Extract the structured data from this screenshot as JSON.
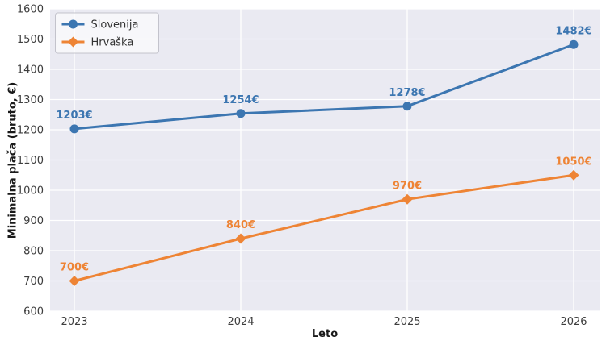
{
  "chart_data": {
    "type": "line",
    "title": "",
    "xlabel": "Leto",
    "ylabel": "Minimalna plača (bruto, €)",
    "x": [
      "2023",
      "2024",
      "2025",
      "2026"
    ],
    "ylim": [
      600,
      1600
    ],
    "yticks": [
      600,
      700,
      800,
      900,
      1000,
      1100,
      1200,
      1300,
      1400,
      1500,
      1600
    ],
    "grid": true,
    "legend_position": "upper left",
    "colors": {
      "plot_background": "#eaeaf2",
      "gridline": "#ffffff",
      "tick_text": "#3d3d3d",
      "slovenija": "#3c76b1",
      "hrvaska": "#ee8435"
    },
    "series": [
      {
        "name": "Slovenija",
        "values": [
          1203,
          1254,
          1278,
          1482
        ],
        "point_labels": [
          "1203€",
          "1254€",
          "1278€",
          "1482€"
        ],
        "color": "#3c76b1",
        "marker": "circle"
      },
      {
        "name": "Hrvaška",
        "values": [
          700,
          840,
          970,
          1050
        ],
        "point_labels": [
          "700€",
          "840€",
          "970€",
          "1050€"
        ],
        "color": "#ee8435",
        "marker": "diamond"
      }
    ]
  }
}
